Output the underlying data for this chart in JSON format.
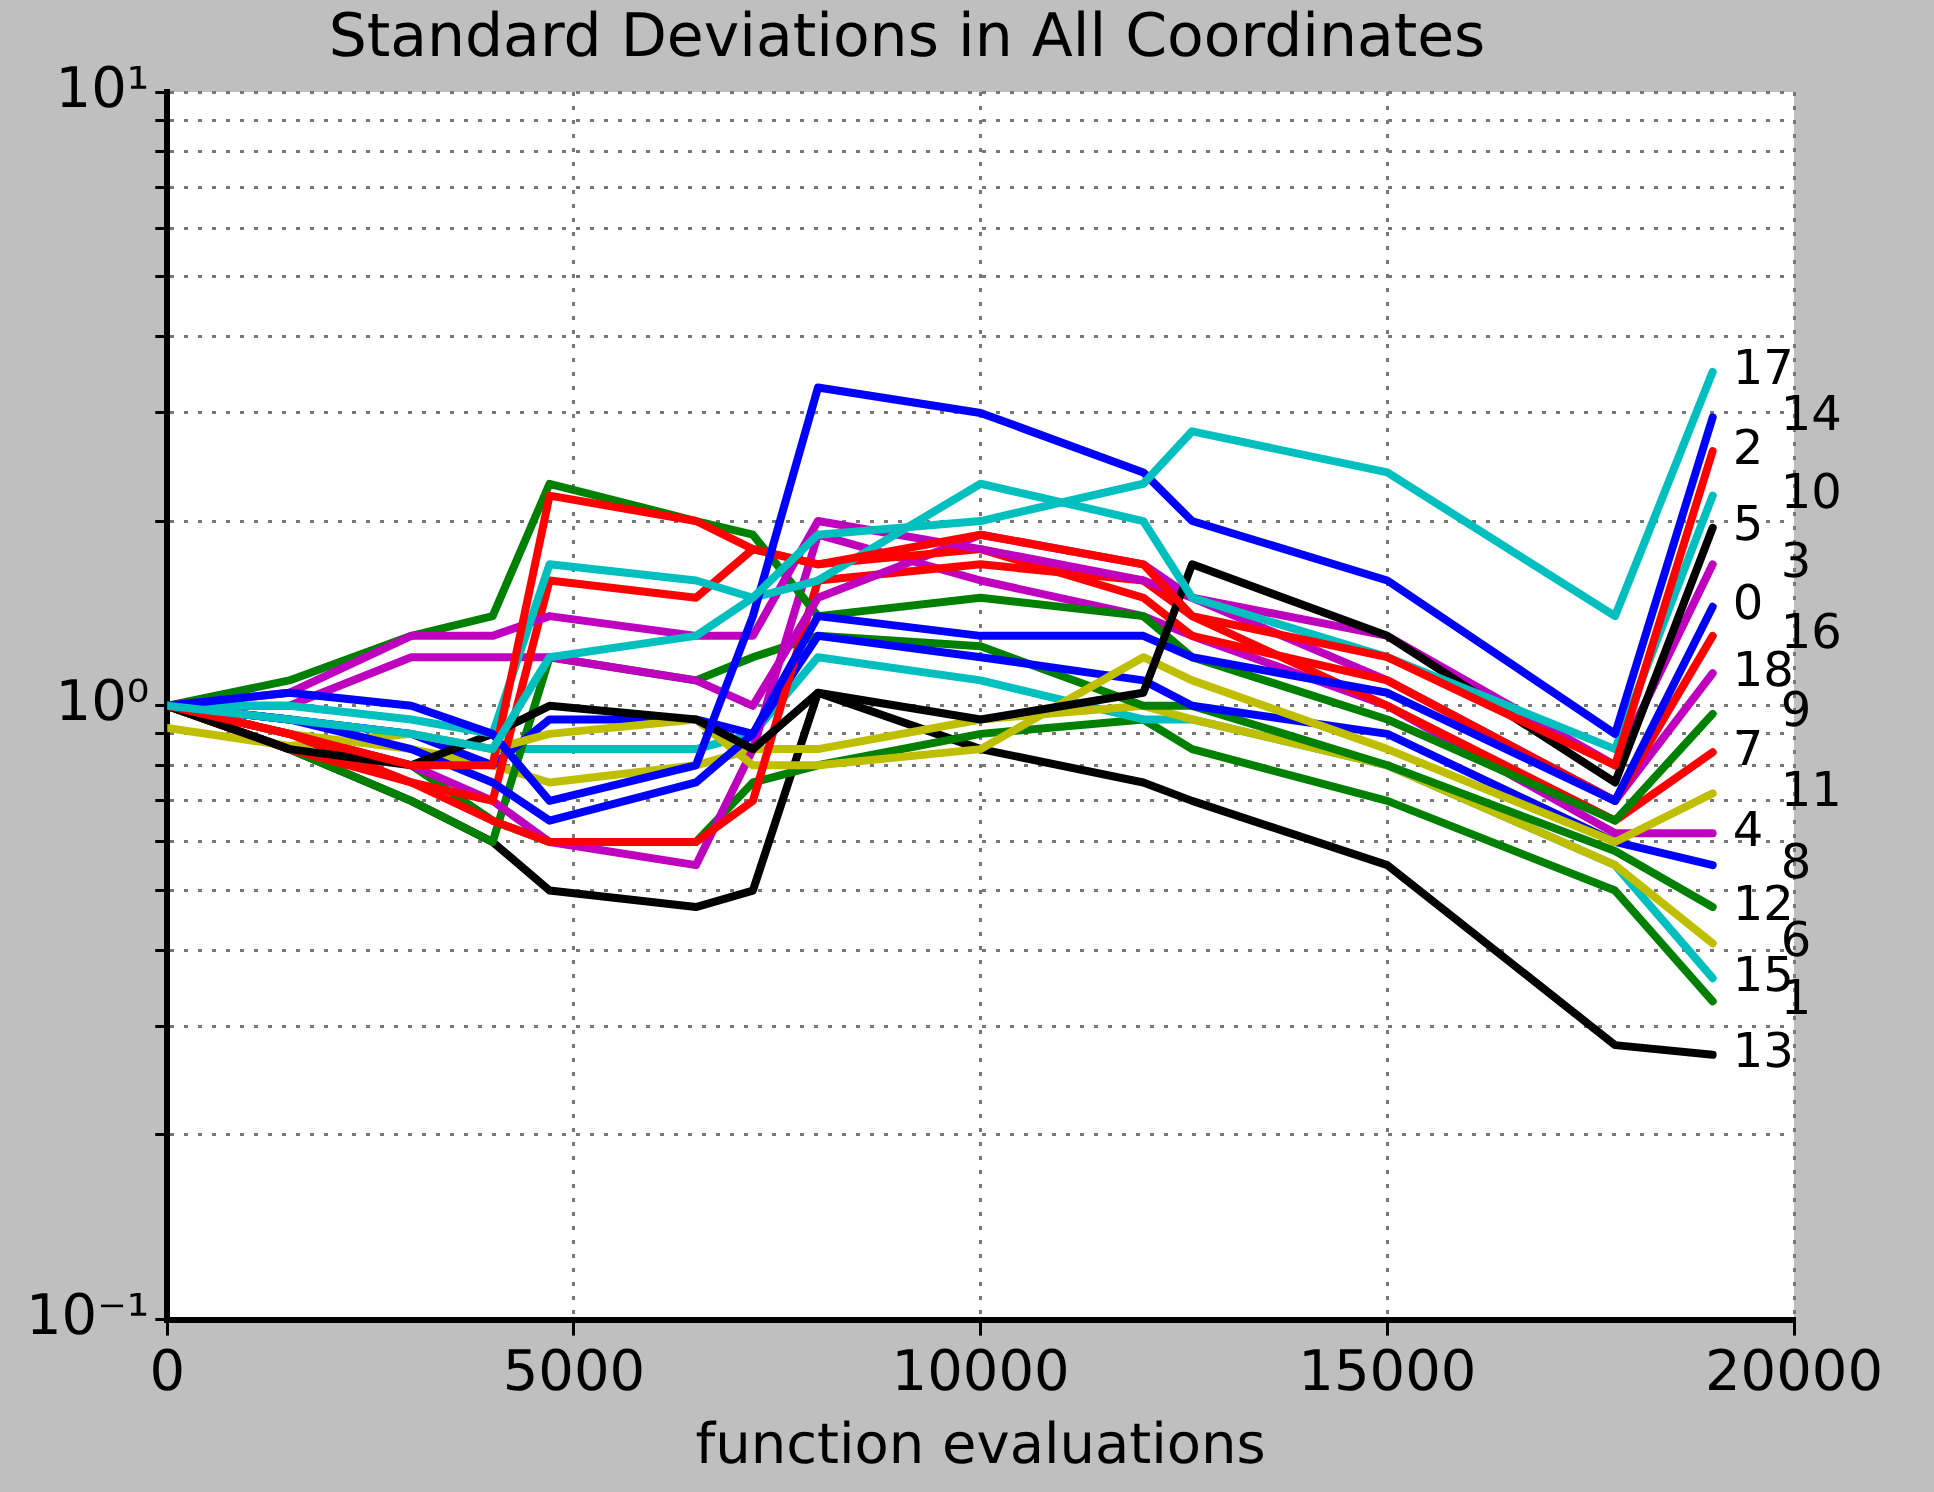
{
  "chart_data": {
    "type": "line",
    "title": "Standard Deviations in All Coordinates",
    "xlabel": "function evaluations",
    "x": [
      0,
      1500,
      3000,
      4000,
      4700,
      6500,
      7200,
      8000,
      10000,
      12000,
      12600,
      15000,
      17800,
      19000
    ],
    "xlim": [
      0,
      20000
    ],
    "xticks": [
      0,
      5000,
      10000,
      15000,
      20000
    ],
    "log": true,
    "ylim": [
      0.1,
      10
    ],
    "yticks": [
      {
        "value": 0.1,
        "label": "10⁻¹"
      },
      {
        "value": 0.2,
        "label": null
      },
      {
        "value": 0.3,
        "label": null
      },
      {
        "value": 0.4,
        "label": null
      },
      {
        "value": 0.5,
        "label": null
      },
      {
        "value": 0.6,
        "label": null
      },
      {
        "value": 0.7,
        "label": null
      },
      {
        "value": 0.8,
        "label": null
      },
      {
        "value": 0.9,
        "label": null
      },
      {
        "value": 1,
        "label": "10⁰"
      },
      {
        "value": 2,
        "label": null
      },
      {
        "value": 3,
        "label": null
      },
      {
        "value": 4,
        "label": null
      },
      {
        "value": 5,
        "label": null
      },
      {
        "value": 6,
        "label": null
      },
      {
        "value": 7,
        "label": null
      },
      {
        "value": 8,
        "label": null
      },
      {
        "value": 9,
        "label": null
      },
      {
        "value": 10,
        "label": "10¹"
      }
    ],
    "grid": true,
    "legend": false,
    "marker": "none",
    "line_style": "solid",
    "series": [
      {
        "name": "17",
        "color": "#00bfbf",
        "values": [
          1.0,
          0.95,
          0.9,
          0.85,
          1.2,
          1.3,
          1.5,
          1.9,
          2.0,
          2.3,
          2.8,
          2.4,
          1.4,
          3.5
        ]
      },
      {
        "name": "14",
        "color": "#0000ff",
        "values": [
          1.0,
          1.05,
          1.0,
          0.9,
          0.7,
          0.8,
          1.4,
          3.3,
          3.0,
          2.4,
          2.0,
          1.6,
          0.9,
          2.95
        ]
      },
      {
        "name": "2",
        "color": "#ff0000",
        "values": [
          1.0,
          0.9,
          0.8,
          0.8,
          2.2,
          2.0,
          1.8,
          1.7,
          1.9,
          1.7,
          1.4,
          1.2,
          0.8,
          2.6
        ]
      },
      {
        "name": "10",
        "color": "#00bfbf",
        "values": [
          1.0,
          1.0,
          0.95,
          0.9,
          1.7,
          1.6,
          1.5,
          1.6,
          2.3,
          2.0,
          1.5,
          1.2,
          0.85,
          2.2
        ]
      },
      {
        "name": "5",
        "color": "#000000",
        "values": [
          1.0,
          0.85,
          0.8,
          0.9,
          1.0,
          0.95,
          0.85,
          1.05,
          0.95,
          1.05,
          1.7,
          1.3,
          0.75,
          1.95
        ]
      },
      {
        "name": "3",
        "color": "#bf00bf",
        "values": [
          1.0,
          1.05,
          1.3,
          1.3,
          1.4,
          1.3,
          1.3,
          2.0,
          1.8,
          1.6,
          1.5,
          1.3,
          0.8,
          1.7
        ]
      },
      {
        "name": "0",
        "color": "#0000ff",
        "values": [
          1.0,
          0.95,
          0.85,
          0.75,
          0.65,
          0.75,
          0.9,
          1.4,
          1.3,
          1.3,
          1.2,
          1.05,
          0.7,
          1.45
        ]
      },
      {
        "name": "16",
        "color": "#ff0000",
        "values": [
          1.0,
          0.9,
          0.75,
          0.7,
          1.6,
          1.5,
          1.8,
          1.7,
          1.8,
          1.5,
          1.3,
          1.1,
          0.7,
          1.3
        ]
      },
      {
        "name": "18",
        "color": "#bf00bf",
        "values": [
          1.0,
          1.0,
          1.2,
          1.2,
          1.2,
          1.1,
          1.0,
          1.5,
          1.9,
          1.7,
          1.5,
          1.1,
          0.7,
          1.13
        ]
      },
      {
        "name": "9",
        "color": "#008000",
        "values": [
          1.0,
          1.1,
          1.3,
          1.4,
          2.3,
          2.0,
          1.9,
          1.4,
          1.5,
          1.4,
          1.2,
          0.95,
          0.65,
          0.97
        ]
      },
      {
        "name": "7",
        "color": "#ff0000",
        "values": [
          1.0,
          0.85,
          0.75,
          0.65,
          0.6,
          0.6,
          0.7,
          1.6,
          1.7,
          1.6,
          1.4,
          1.0,
          0.65,
          0.84
        ]
      },
      {
        "name": "11",
        "color": "#bfbf00",
        "values": [
          0.92,
          0.86,
          0.9,
          0.85,
          0.9,
          0.95,
          0.8,
          0.8,
          0.85,
          1.2,
          1.1,
          0.85,
          0.6,
          0.72
        ]
      },
      {
        "name": "4",
        "color": "#bf00bf",
        "values": [
          1.0,
          0.9,
          0.8,
          0.7,
          0.6,
          0.55,
          0.85,
          1.9,
          1.6,
          1.4,
          1.3,
          1.0,
          0.62,
          0.62
        ]
      },
      {
        "name": "8",
        "color": "#0000ff",
        "values": [
          1.0,
          0.95,
          0.9,
          0.8,
          0.95,
          0.95,
          0.9,
          1.3,
          1.2,
          1.1,
          1.0,
          0.9,
          0.6,
          0.55
        ]
      },
      {
        "name": "12",
        "color": "#008000",
        "values": [
          1.0,
          0.85,
          0.7,
          0.6,
          1.2,
          1.1,
          1.2,
          1.3,
          1.25,
          1.0,
          1.0,
          0.8,
          0.58,
          0.47
        ]
      },
      {
        "name": "6",
        "color": "#bfbf00",
        "values": [
          1.0,
          0.9,
          0.85,
          0.8,
          0.75,
          0.8,
          0.85,
          0.85,
          0.95,
          1.0,
          0.95,
          0.8,
          0.55,
          0.41
        ]
      },
      {
        "name": "15",
        "color": "#00bfbf",
        "values": [
          1.0,
          0.95,
          0.9,
          0.85,
          0.85,
          0.85,
          0.9,
          1.2,
          1.1,
          0.95,
          0.95,
          0.8,
          0.55,
          0.36
        ]
      },
      {
        "name": "1",
        "color": "#008000",
        "values": [
          1.0,
          0.9,
          0.8,
          0.65,
          0.6,
          0.6,
          0.75,
          0.8,
          0.9,
          0.95,
          0.85,
          0.7,
          0.5,
          0.33
        ]
      },
      {
        "name": "13",
        "color": "#000000",
        "values": [
          1.0,
          0.85,
          0.7,
          0.6,
          0.5,
          0.47,
          0.5,
          1.05,
          0.85,
          0.75,
          0.7,
          0.55,
          0.28,
          0.27
        ]
      }
    ]
  }
}
